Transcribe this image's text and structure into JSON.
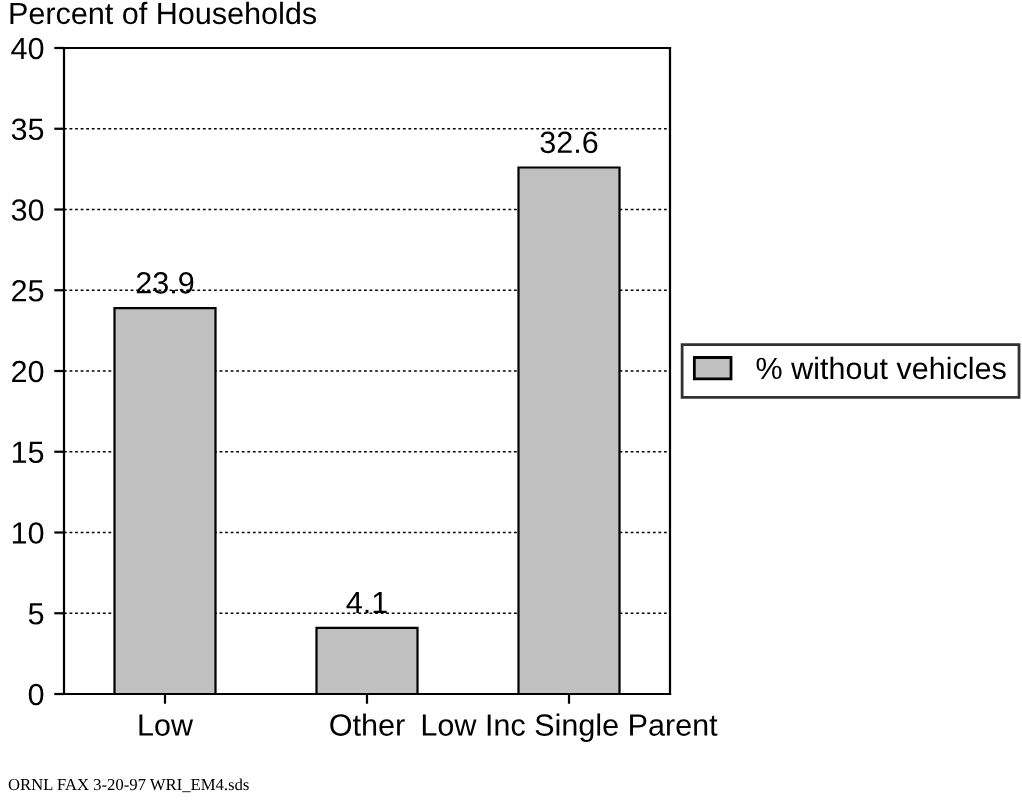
{
  "chart_data": {
    "type": "bar",
    "ylabel": "Percent of Households",
    "categories": [
      "Low",
      "Other",
      "Low Inc Single Parent"
    ],
    "series": [
      {
        "name": "% without vehicles",
        "color": "#c0c0c0",
        "values": [
          23.9,
          4.1,
          32.6
        ]
      }
    ],
    "ylim": [
      0,
      40
    ],
    "yticks": [
      0,
      5,
      10,
      15,
      20,
      25,
      30,
      35,
      40
    ],
    "grid": "y",
    "legend": "right",
    "data_labels": true,
    "annotations": [
      "ORNL FAX 3-20-97 WRI_EM4.sds"
    ]
  }
}
